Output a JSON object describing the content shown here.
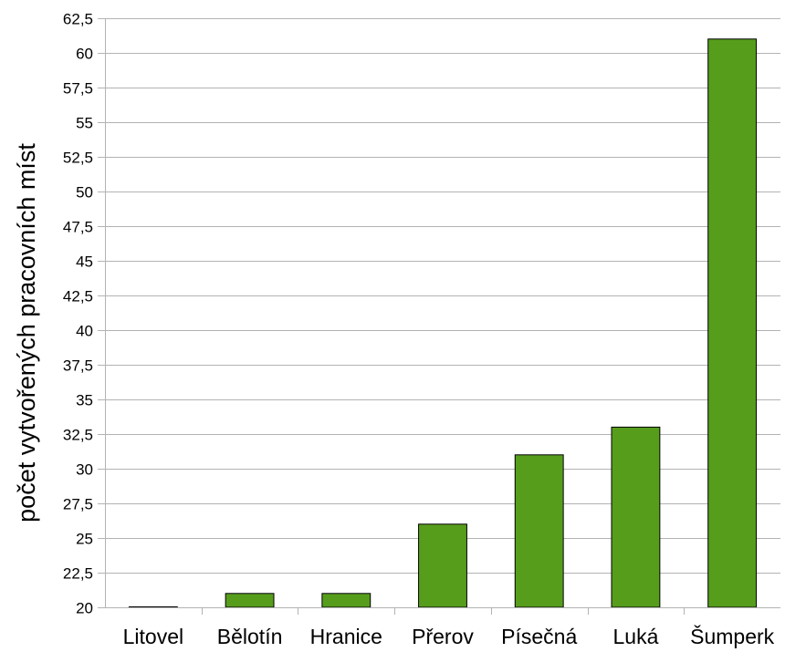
{
  "chart_data": {
    "type": "bar",
    "title": "",
    "xlabel": "",
    "ylabel": "počet vytvořených pracovních míst",
    "ylim": [
      20,
      62.5
    ],
    "ytick_step": 2.5,
    "yticks": [
      "20",
      "22,5",
      "25",
      "27,5",
      "30",
      "32,5",
      "35",
      "37,5",
      "40",
      "42,5",
      "45",
      "47,5",
      "50",
      "52,5",
      "55",
      "57,5",
      "60",
      "62,5"
    ],
    "categories": [
      "Litovel",
      "Bělotín",
      "Hranice",
      "Přerov",
      "Písečná",
      "Luká",
      "Šumperk"
    ],
    "values": [
      20,
      21,
      21,
      26,
      31,
      33,
      61
    ],
    "bar_color": "#579d1c",
    "grid": true,
    "legend": "none"
  }
}
